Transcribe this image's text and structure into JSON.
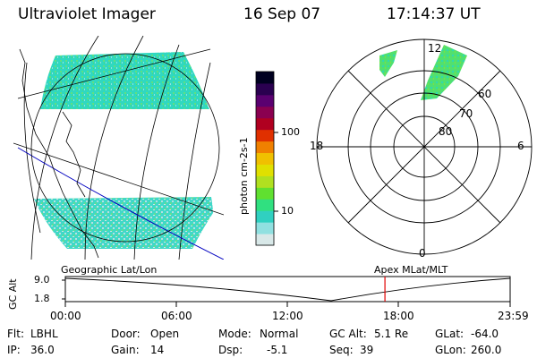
{
  "header": {
    "instrument": "Ultraviolet Imager",
    "date": "16 Sep 07",
    "time": "17:14:37 UT"
  },
  "colorbar": {
    "label": "photon cm-2s-1",
    "ticks": [
      "100",
      "10"
    ],
    "colors": [
      "#000020",
      "#2a0050",
      "#5a0070",
      "#8a0050",
      "#b00020",
      "#e03000",
      "#f08000",
      "#f0c000",
      "#e0e000",
      "#b0e020",
      "#60e030",
      "#30e080",
      "#30d0c0",
      "#90e0e0",
      "#d8e8e8"
    ]
  },
  "polar": {
    "mlt_labels": {
      "top": "12",
      "left": "18",
      "right": "6",
      "bottom": "0"
    },
    "lat_labels": [
      "60",
      "70",
      "80"
    ]
  },
  "timeline": {
    "left_label": "Geographic Lat/Lon",
    "right_label": "Apex MLat/MLT",
    "y_axis_title": "GC Alt",
    "y_ticks": [
      "9.0",
      "1.8"
    ],
    "x_ticks": [
      "00:00",
      "06:00",
      "12:00",
      "18:00",
      "23:59"
    ],
    "current_time_fraction": 0.7185
  },
  "status": {
    "flt_label": "Flt:",
    "flt_value": "LBHL",
    "ip_label": "IP:",
    "ip_value": "36.0",
    "door_label": "Door:",
    "door_value": "Open",
    "gain_label": "Gain:",
    "gain_value": "14",
    "mode_label": "Mode:",
    "mode_value": "Normal",
    "dsp_label": "Dsp:",
    "dsp_value": "-5.1",
    "gcalt_label": "GC Alt:",
    "gcalt_value": "5.1 Re",
    "seq_label": "Seq:",
    "seq_value": "39",
    "glat_label": "GLat:",
    "glat_value": "-64.0",
    "glon_label": "GLon:",
    "glon_value": "260.0"
  },
  "colors": {
    "aurora_cyan": "#30d8c0",
    "aurora_green": "#50e070",
    "orbit_red": "#e00000",
    "terminator_blue": "#0000c0"
  }
}
